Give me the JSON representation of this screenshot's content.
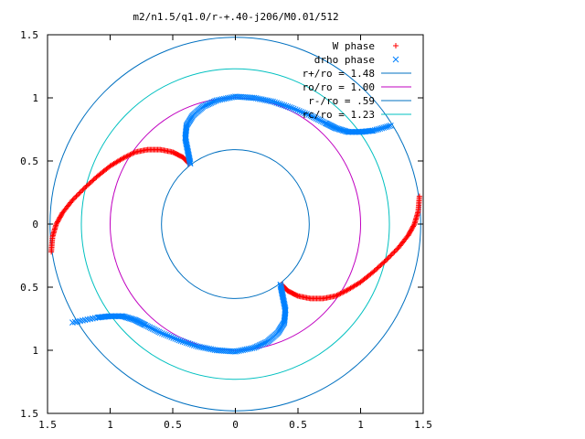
{
  "chart_data": {
    "type": "scatter",
    "title": "m2/n1.5/q1.0/r-+.40-j206/M0.01/512",
    "xlim": [
      -1.5,
      1.5
    ],
    "ylim": [
      -1.5,
      1.5
    ],
    "xticks": [
      -1.5,
      -1,
      -0.5,
      0,
      0.5,
      1,
      1.5
    ],
    "yticks": [
      -1.5,
      -1,
      -0.5,
      0,
      0.5,
      1,
      1.5
    ],
    "xtick_labels": [
      "1.5",
      "1",
      "0.5",
      "0",
      "0.5",
      "1",
      "1.5"
    ],
    "ytick_labels": [
      "1.5",
      "1",
      "0.5",
      "0",
      "0.5",
      "1",
      "1.5"
    ],
    "grid": false,
    "legend_position": "top-right",
    "series": [
      {
        "name": "W phase",
        "kind": "points",
        "marker": "plus",
        "color": "#ff0000",
        "arms": [
          [
            [
              -0.37,
              0.48
            ],
            [
              -0.42,
              0.53
            ],
            [
              -0.5,
              0.57
            ],
            [
              -0.6,
              0.59
            ],
            [
              -0.7,
              0.59
            ],
            [
              -0.8,
              0.57
            ],
            [
              -0.9,
              0.52
            ],
            [
              -1.0,
              0.46
            ],
            [
              -1.1,
              0.38
            ],
            [
              -1.2,
              0.29
            ],
            [
              -1.3,
              0.19
            ],
            [
              -1.38,
              0.09
            ],
            [
              -1.43,
              0.0
            ],
            [
              -1.46,
              -0.1
            ],
            [
              -1.47,
              -0.22
            ]
          ],
          [
            [
              0.37,
              -0.48
            ],
            [
              0.42,
              -0.53
            ],
            [
              0.5,
              -0.57
            ],
            [
              0.6,
              -0.59
            ],
            [
              0.7,
              -0.59
            ],
            [
              0.8,
              -0.57
            ],
            [
              0.9,
              -0.52
            ],
            [
              1.0,
              -0.46
            ],
            [
              1.1,
              -0.38
            ],
            [
              1.2,
              -0.29
            ],
            [
              1.3,
              -0.19
            ],
            [
              1.38,
              -0.09
            ],
            [
              1.43,
              0.0
            ],
            [
              1.46,
              0.1
            ],
            [
              1.47,
              0.22
            ]
          ]
        ]
      },
      {
        "name": "drho phase",
        "kind": "points",
        "marker": "cross",
        "color": "#0080ff",
        "arms": [
          [
            [
              -0.36,
              0.48
            ],
            [
              -0.38,
              0.58
            ],
            [
              -0.4,
              0.68
            ],
            [
              -0.39,
              0.78
            ],
            [
              -0.34,
              0.86
            ],
            [
              -0.26,
              0.93
            ],
            [
              -0.15,
              0.98
            ],
            [
              0.0,
              1.01
            ],
            [
              0.15,
              1.0
            ],
            [
              0.3,
              0.97
            ],
            [
              0.45,
              0.92
            ],
            [
              0.6,
              0.86
            ],
            [
              0.72,
              0.8
            ],
            [
              0.8,
              0.76
            ],
            [
              0.9,
              0.73
            ],
            [
              1.0,
              0.73
            ],
            [
              1.1,
              0.74
            ],
            [
              1.24,
              0.78
            ]
          ],
          [
            [
              0.36,
              -0.48
            ],
            [
              0.38,
              -0.58
            ],
            [
              0.4,
              -0.68
            ],
            [
              0.39,
              -0.78
            ],
            [
              0.34,
              -0.86
            ],
            [
              0.26,
              -0.93
            ],
            [
              0.15,
              -0.98
            ],
            [
              0.0,
              -1.01
            ],
            [
              -0.15,
              -1.0
            ],
            [
              -0.3,
              -0.97
            ],
            [
              -0.45,
              -0.92
            ],
            [
              -0.6,
              -0.86
            ],
            [
              -0.72,
              -0.8
            ],
            [
              -0.8,
              -0.76
            ],
            [
              -0.9,
              -0.73
            ],
            [
              -1.0,
              -0.73
            ],
            [
              -1.1,
              -0.74
            ],
            [
              -1.3,
              -0.78
            ]
          ]
        ]
      },
      {
        "name": "r+/ro = 1.48",
        "kind": "circle",
        "radius": 1.48,
        "color": "#0070c0"
      },
      {
        "name": "ro/ro = 1.00",
        "kind": "circle",
        "radius": 1.0,
        "color": "#c000c0"
      },
      {
        "name": "r-/ro = .59",
        "kind": "circle",
        "radius": 0.59,
        "color": "#0070c0"
      },
      {
        "name": "rc/ro = 1.23",
        "kind": "circle",
        "radius": 1.23,
        "color": "#00c0c0"
      }
    ]
  }
}
